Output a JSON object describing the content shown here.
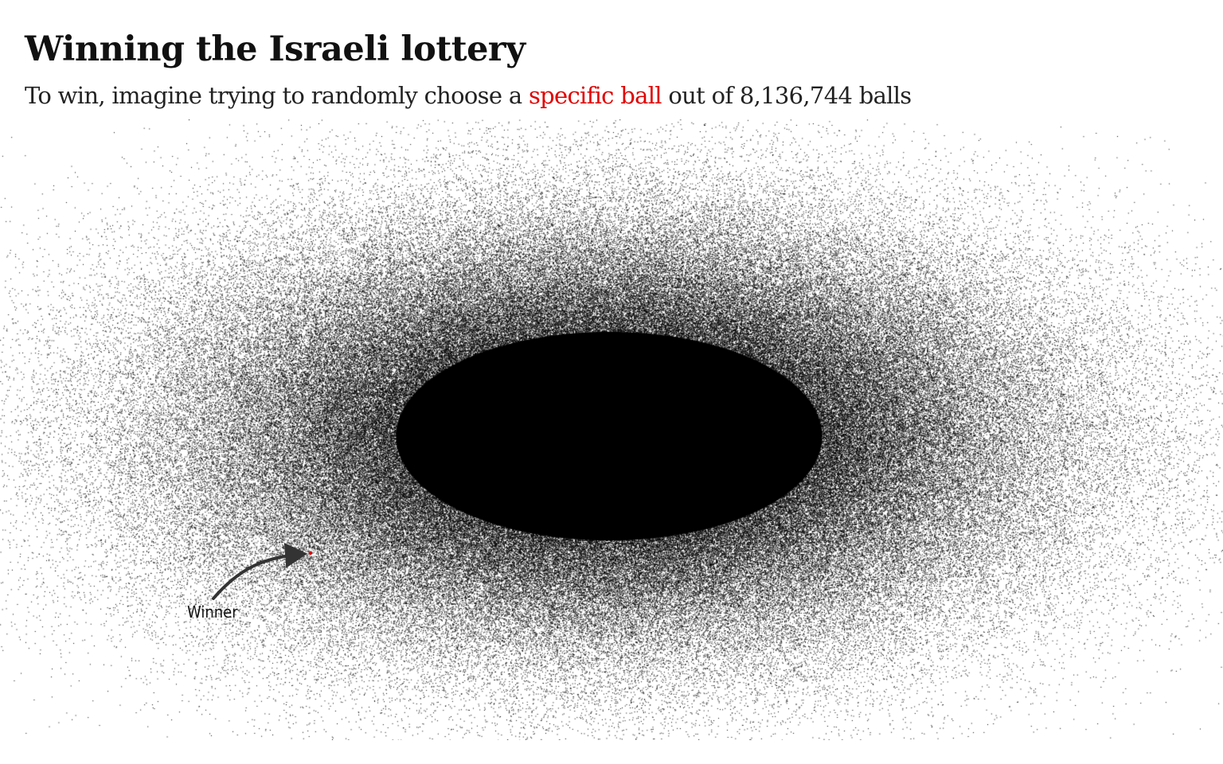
{
  "header": {
    "title": "Winning the Israeli lottery",
    "subtitle_before": "To win, imagine trying to randomly choose a ",
    "subtitle_highlight": "specific ball",
    "subtitle_after": " out of 8,136,744 balls"
  },
  "colors": {
    "dots": "#000000",
    "highlight": "#e00000",
    "arrow": "#333333"
  },
  "chart_data": {
    "type": "scatter",
    "title": "Winning the Israeli lottery",
    "subtitle": "To win, imagine trying to randomly choose a specific ball out of 8,136,744 balls",
    "total_points": 8136744,
    "distribution": "dense elliptical cloud of black dots, horizontally elongated, fading at the edges",
    "highlighted_point": {
      "label": "Winner",
      "color": "#e00000"
    },
    "annotations": [
      {
        "text": "Winner",
        "target": "highlighted_point",
        "style": "curved arrow"
      }
    ],
    "xlabel": "",
    "ylabel": "",
    "grid": false,
    "legend": "none"
  }
}
